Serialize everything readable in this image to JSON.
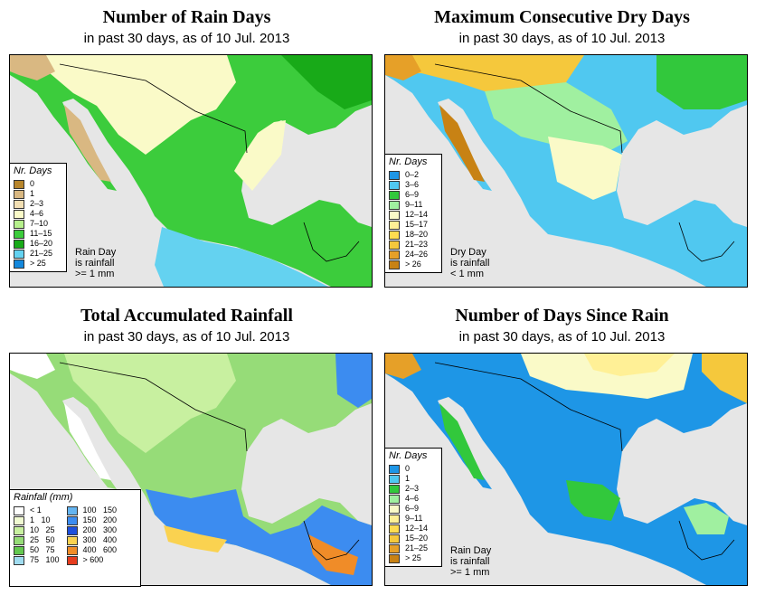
{
  "panels": [
    {
      "title": "Number of Rain Days",
      "subtitle": "in past 30 days, as of  10 Jul. 2013",
      "legend": {
        "title": "Nr. Days",
        "items": [
          {
            "label": "0",
            "color": "#b8862c"
          },
          {
            "label": "1",
            "color": "#d9b882"
          },
          {
            "label": "2–3",
            "color": "#f2dfb3"
          },
          {
            "label": "4–6",
            "color": "#fafac8"
          },
          {
            "label": "7–10",
            "color": "#b6f08c"
          },
          {
            "label": "11–15",
            "color": "#3ccc3c"
          },
          {
            "label": "16–20",
            "color": "#18aa18"
          },
          {
            "label": "21–25",
            "color": "#64d2f0"
          },
          {
            "label": "> 25",
            "color": "#1488dc"
          }
        ]
      },
      "note": [
        "Rain Day",
        "is rainfall",
        ">= 1 mm"
      ]
    },
    {
      "title": "Maximum Consecutive Dry Days",
      "subtitle": "in past 30 days, as of  10 Jul. 2013",
      "legend": {
        "title": "Nr. Days",
        "items": [
          {
            "label": "0–2",
            "color": "#1e96e6"
          },
          {
            "label": "3–6",
            "color": "#50c8f0"
          },
          {
            "label": "6–9",
            "color": "#32c83c"
          },
          {
            "label": "9–11",
            "color": "#a0f0a0"
          },
          {
            "label": "12–14",
            "color": "#fafac8"
          },
          {
            "label": "15–17",
            "color": "#fff096"
          },
          {
            "label": "18–20",
            "color": "#ffdc50"
          },
          {
            "label": "21–23",
            "color": "#f5c83c"
          },
          {
            "label": "24–26",
            "color": "#e6a028"
          },
          {
            "label": "> 26",
            "color": "#c88214"
          }
        ]
      },
      "note": [
        "Dry Day",
        "is rainfall",
        "< 1 mm"
      ]
    },
    {
      "title": "Total Accumulated Rainfall",
      "subtitle": "in past 30 days, as of  10 Jul. 2013",
      "legend": {
        "title": "Rainfall (mm)",
        "items": [
          {
            "label": "< 1",
            "color": "#ffffff"
          },
          {
            "label": "1   10",
            "color": "#f0fad2"
          },
          {
            "label": "10   25",
            "color": "#c8f0a0"
          },
          {
            "label": "25   50",
            "color": "#96dc78"
          },
          {
            "label": "50   75",
            "color": "#64c850"
          },
          {
            "label": "75   100",
            "color": "#a0dcf0"
          },
          {
            "label": "100   150",
            "color": "#64b4f0"
          },
          {
            "label": "150   200",
            "color": "#3c8cf0"
          },
          {
            "label": "200   300",
            "color": "#1e50dc"
          },
          {
            "label": "300   400",
            "color": "#fad250"
          },
          {
            "label": "400   600",
            "color": "#f08c28"
          },
          {
            "label": "> 600",
            "color": "#e63c1e"
          }
        ]
      },
      "note": []
    },
    {
      "title": "Number of Days Since Rain",
      "subtitle": "in past 30 days, as of  10 Jul. 2013",
      "legend": {
        "title": "Nr. Days",
        "items": [
          {
            "label": "0",
            "color": "#1e96e6"
          },
          {
            "label": "1",
            "color": "#50c8f0"
          },
          {
            "label": "2–3",
            "color": "#32c83c"
          },
          {
            "label": "4–6",
            "color": "#a0f0a0"
          },
          {
            "label": "6–9",
            "color": "#fafac8"
          },
          {
            "label": "9–11",
            "color": "#fff096"
          },
          {
            "label": "12–14",
            "color": "#ffdc50"
          },
          {
            "label": "15–20",
            "color": "#f5c83c"
          },
          {
            "label": "21–25",
            "color": "#e6a028"
          },
          {
            "label": "> 25",
            "color": "#c88214"
          }
        ]
      },
      "note": [
        "Rain Day",
        "is rainfall",
        ">= 1 mm"
      ]
    }
  ],
  "colors": {
    "ocean": "#e6e6e6",
    "border": "#000000",
    "outside": "#ffffff"
  }
}
